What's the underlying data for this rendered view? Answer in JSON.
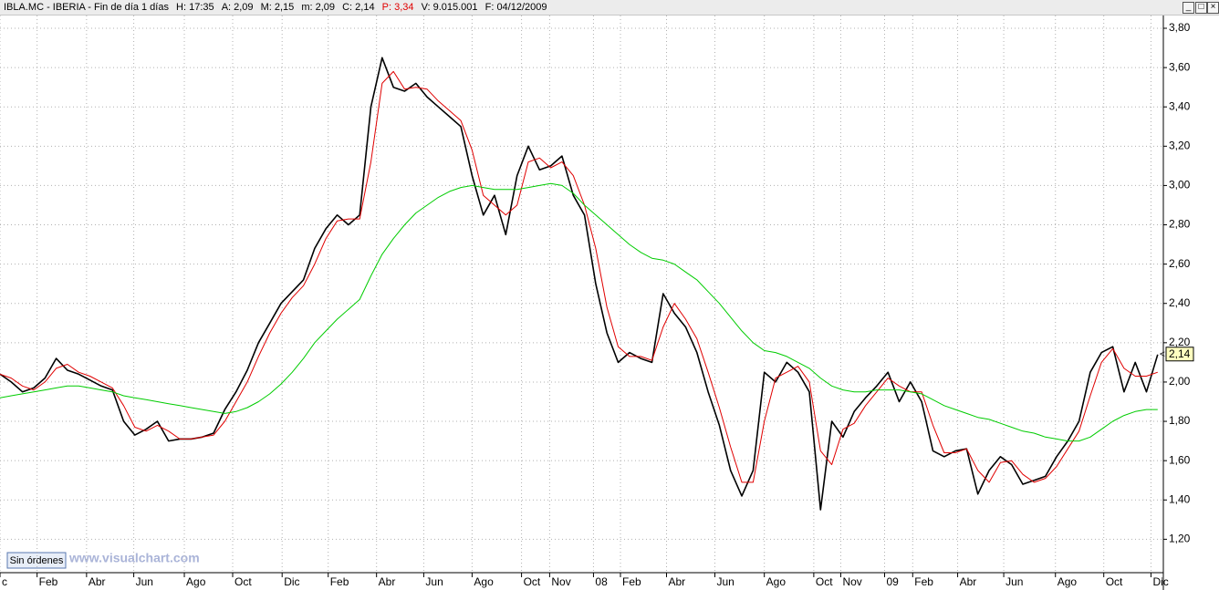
{
  "header": {
    "title": "IBLA.MC - IBERIA - Fin de día 1 días",
    "fields": [
      "H: 17:35",
      "A: 2,09",
      "M: 2,15",
      "m: 2,09",
      "C: 2,14",
      "P: 3,34",
      "V: 9.015.001",
      "F: 04/12/2009"
    ]
  },
  "chart_data": {
    "type": "line",
    "x": [
      0,
      1,
      2,
      3,
      4,
      5,
      6,
      7,
      8,
      9,
      10,
      11,
      12,
      13,
      14,
      15,
      16,
      17,
      18,
      19,
      20,
      21,
      22,
      23,
      24,
      25,
      26,
      27,
      28,
      29,
      30,
      31,
      32,
      33,
      34,
      35,
      36,
      37,
      38,
      39,
      40,
      41,
      42,
      43,
      44,
      45,
      46,
      47,
      48,
      49,
      50,
      51,
      52,
      53,
      54,
      55,
      56,
      57,
      58,
      59,
      60,
      61,
      62,
      63,
      64,
      65,
      66,
      67,
      68,
      69,
      70,
      71,
      72,
      73,
      74,
      75,
      76,
      77,
      78,
      79,
      80,
      81,
      82,
      83,
      84,
      85,
      86,
      87,
      88,
      89,
      90,
      91,
      92,
      93,
      94,
      95,
      96,
      97,
      98,
      99,
      100,
      101,
      102,
      103
    ],
    "series": [
      {
        "color": "#000000",
        "values": [
          2.04,
          2.0,
          1.95,
          1.97,
          2.02,
          2.12,
          2.06,
          2.04,
          2.01,
          1.98,
          1.96,
          1.8,
          1.73,
          1.76,
          1.8,
          1.7,
          1.71,
          1.71,
          1.72,
          1.74,
          1.86,
          1.95,
          2.06,
          2.2,
          2.3,
          2.4,
          2.46,
          2.52,
          2.68,
          2.78,
          2.85,
          2.8,
          2.85,
          3.4,
          3.65,
          3.5,
          3.48,
          3.52,
          3.45,
          3.4,
          3.35,
          3.3,
          3.05,
          2.85,
          2.95,
          2.75,
          3.05,
          3.2,
          3.08,
          3.1,
          3.15,
          2.95,
          2.85,
          2.5,
          2.25,
          2.1,
          2.15,
          2.12,
          2.1,
          2.45,
          2.35,
          2.28,
          2.15,
          1.95,
          1.78,
          1.55,
          1.42,
          1.55,
          2.05,
          2.0,
          2.1,
          2.05,
          1.95,
          1.35,
          1.8,
          1.72,
          1.85,
          1.92,
          1.98,
          2.05,
          1.9,
          2.0,
          1.9,
          1.65,
          1.62,
          1.65,
          1.66,
          1.43,
          1.55,
          1.62,
          1.58,
          1.48,
          1.5,
          1.52,
          1.62,
          1.7,
          1.8,
          2.05,
          2.15,
          2.18,
          1.95,
          2.1,
          1.95,
          2.14
        ]
      },
      {
        "color": "#e00000",
        "values": [
          2.04,
          2.02,
          1.98,
          1.96,
          2.0,
          2.07,
          2.09,
          2.05,
          2.03,
          2.0,
          1.97,
          1.88,
          1.77,
          1.75,
          1.78,
          1.75,
          1.71,
          1.71,
          1.72,
          1.73,
          1.8,
          1.9,
          2.0,
          2.13,
          2.25,
          2.35,
          2.43,
          2.49,
          2.6,
          2.73,
          2.82,
          2.83,
          2.83,
          3.12,
          3.52,
          3.58,
          3.49,
          3.5,
          3.49,
          3.43,
          3.38,
          3.33,
          3.18,
          2.95,
          2.9,
          2.85,
          2.9,
          3.12,
          3.14,
          3.09,
          3.12,
          3.05,
          2.9,
          2.68,
          2.38,
          2.18,
          2.13,
          2.13,
          2.11,
          2.28,
          2.4,
          2.32,
          2.22,
          2.05,
          1.87,
          1.67,
          1.49,
          1.49,
          1.8,
          2.02,
          2.05,
          2.08,
          2.0,
          1.65,
          1.58,
          1.76,
          1.79,
          1.88,
          1.95,
          2.02,
          1.98,
          1.95,
          1.95,
          1.78,
          1.64,
          1.64,
          1.66,
          1.55,
          1.49,
          1.59,
          1.6,
          1.53,
          1.49,
          1.51,
          1.57,
          1.66,
          1.75,
          1.93,
          2.1,
          2.17,
          2.07,
          2.03,
          2.03,
          2.05
        ]
      },
      {
        "color": "#00cc00",
        "values": [
          1.92,
          1.93,
          1.94,
          1.95,
          1.96,
          1.97,
          1.98,
          1.98,
          1.97,
          1.96,
          1.95,
          1.93,
          1.92,
          1.91,
          1.9,
          1.89,
          1.88,
          1.87,
          1.86,
          1.85,
          1.84,
          1.85,
          1.87,
          1.9,
          1.94,
          1.99,
          2.05,
          2.12,
          2.2,
          2.26,
          2.32,
          2.37,
          2.42,
          2.54,
          2.65,
          2.73,
          2.8,
          2.86,
          2.9,
          2.94,
          2.97,
          2.99,
          3.0,
          2.99,
          2.98,
          2.98,
          2.98,
          2.99,
          3.0,
          3.01,
          3.0,
          2.96,
          2.9,
          2.85,
          2.8,
          2.75,
          2.7,
          2.66,
          2.63,
          2.62,
          2.6,
          2.56,
          2.52,
          2.46,
          2.4,
          2.33,
          2.26,
          2.2,
          2.16,
          2.15,
          2.13,
          2.1,
          2.07,
          2.02,
          1.98,
          1.96,
          1.95,
          1.95,
          1.96,
          1.96,
          1.96,
          1.95,
          1.94,
          1.91,
          1.88,
          1.86,
          1.84,
          1.82,
          1.81,
          1.79,
          1.77,
          1.75,
          1.74,
          1.72,
          1.71,
          1.7,
          1.7,
          1.72,
          1.76,
          1.8,
          1.83,
          1.85,
          1.86,
          1.86
        ]
      }
    ],
    "xlim": [
      0,
      103.5
    ],
    "xticks": [
      {
        "value": 0,
        "label": "c"
      },
      {
        "value": 3.3,
        "label": "Feb"
      },
      {
        "value": 7.7,
        "label": "Abr"
      },
      {
        "value": 11.9,
        "label": "Jun"
      },
      {
        "value": 16.4,
        "label": "Ago"
      },
      {
        "value": 20.7,
        "label": "Oct"
      },
      {
        "value": 25.1,
        "label": "Dic"
      },
      {
        "value": 29.2,
        "label": "Feb"
      },
      {
        "value": 33.5,
        "label": "Abr"
      },
      {
        "value": 37.7,
        "label": "Jun"
      },
      {
        "value": 42,
        "label": "Ago"
      },
      {
        "value": 46.4,
        "label": "Oct"
      },
      {
        "value": 48.9,
        "label": "Nov"
      },
      {
        "value": 52.8,
        "label": "08"
      },
      {
        "value": 55.2,
        "label": "Feb"
      },
      {
        "value": 59.3,
        "label": "Abr"
      },
      {
        "value": 63.6,
        "label": "Jun"
      },
      {
        "value": 68,
        "label": "Ago"
      },
      {
        "value": 72.4,
        "label": "Oct"
      },
      {
        "value": 74.8,
        "label": "Nov"
      },
      {
        "value": 78.7,
        "label": "09"
      },
      {
        "value": 81.2,
        "label": "Feb"
      },
      {
        "value": 85.2,
        "label": "Abr"
      },
      {
        "value": 89.3,
        "label": "Jun"
      },
      {
        "value": 93.9,
        "label": "Ago"
      },
      {
        "value": 98.2,
        "label": "Oct"
      },
      {
        "value": 102.4,
        "label": "Dic"
      }
    ],
    "ylim": [
      1.03,
      3.865
    ],
    "yticks": [
      {
        "value": 1.2,
        "label": "1,20"
      },
      {
        "value": 1.4,
        "label": "1,40"
      },
      {
        "value": 1.6,
        "label": "1,60"
      },
      {
        "value": 1.8,
        "label": "1,80"
      },
      {
        "value": 2.0,
        "label": "2,00"
      },
      {
        "value": 2.2,
        "label": "2,20"
      },
      {
        "value": 2.4,
        "label": "2,40"
      },
      {
        "value": 2.6,
        "label": "2,60"
      },
      {
        "value": 2.8,
        "label": "2,80"
      },
      {
        "value": 3.0,
        "label": "3,00"
      },
      {
        "value": 3.2,
        "label": "3,20"
      },
      {
        "value": 3.4,
        "label": "3,40"
      },
      {
        "value": 3.6,
        "label": "3,60"
      },
      {
        "value": 3.8,
        "label": "3,80"
      }
    ],
    "grid": true,
    "last_price_label": "2,14",
    "orders_button": "Sin órdenes",
    "watermark": "www.visualchart.com"
  }
}
